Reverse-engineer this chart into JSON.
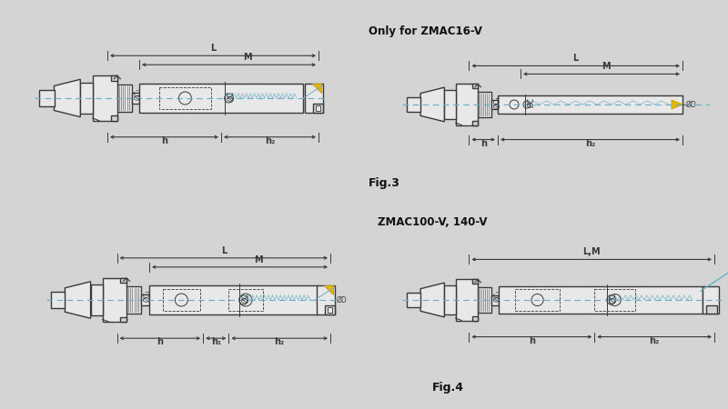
{
  "bg_color": "#d4d4d4",
  "line_color": "#3a3a3a",
  "dash_color": "#6aaec8",
  "white_fill": "#e8e8e8",
  "title1": "Only for ZMAC16-V",
  "title2": "ZMAC100-V, 140-V",
  "fig3": "Fig.3",
  "fig4": "Fig.4",
  "font_size_title": 8.5,
  "font_size_label": 6.5,
  "font_size_dim": 7,
  "font_size_fig": 9,
  "yellow": "#e8b800",
  "yellow_dark": "#c8a000"
}
